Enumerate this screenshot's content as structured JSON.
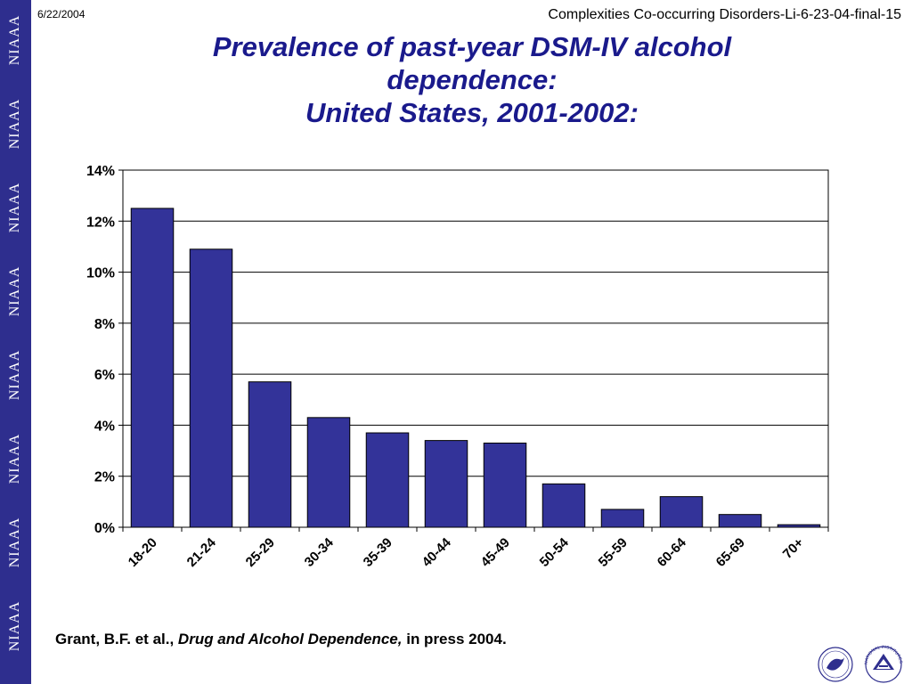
{
  "sidebar": {
    "labels": [
      "NIAAA",
      "NIAAA",
      "NIAAA",
      "NIAAA",
      "NIAAA",
      "NIAAA",
      "NIAAA",
      "NIAAA"
    ]
  },
  "header": {
    "date": "6/22/2004",
    "reference": "Complexities Co-occurring Disorders-Li-6-23-04-final-15"
  },
  "title": {
    "line1": "Prevalence of past-year DSM-IV alcohol",
    "line2": "dependence:",
    "line3": "United States, 2001-2002:"
  },
  "citation": {
    "authors": "Grant, B.F. et al., ",
    "journal": "Drug and Alcohol Dependence,",
    "status": " in press 2004."
  },
  "logos": {
    "hhs": "hhs-eagle-icon",
    "nih": "nih-logo-icon",
    "nih_text": "NATIONAL INSTITUTES OF HEALTH"
  },
  "colors": {
    "bar": "#333399",
    "sidebar": "#2e2e8e",
    "title": "#1a1a8c"
  },
  "chart_data": {
    "type": "bar",
    "categories": [
      "18-20",
      "21-24",
      "25-29",
      "30-34",
      "35-39",
      "40-44",
      "45-49",
      "50-54",
      "55-59",
      "60-64",
      "65-69",
      "70+"
    ],
    "values": [
      12.5,
      10.9,
      5.7,
      4.3,
      3.7,
      3.4,
      3.3,
      1.7,
      0.7,
      1.2,
      0.5,
      0.1
    ],
    "yticks": [
      0,
      2,
      4,
      6,
      8,
      10,
      12,
      14
    ],
    "ytick_labels": [
      "0%",
      "2%",
      "4%",
      "6%",
      "8%",
      "10%",
      "12%",
      "14%"
    ],
    "ylim": [
      0,
      14
    ],
    "grid": true,
    "legend": "none",
    "title": "Prevalence of past-year DSM-IV alcohol dependence: United States, 2001-2002:",
    "xlabel": "",
    "ylabel": ""
  }
}
